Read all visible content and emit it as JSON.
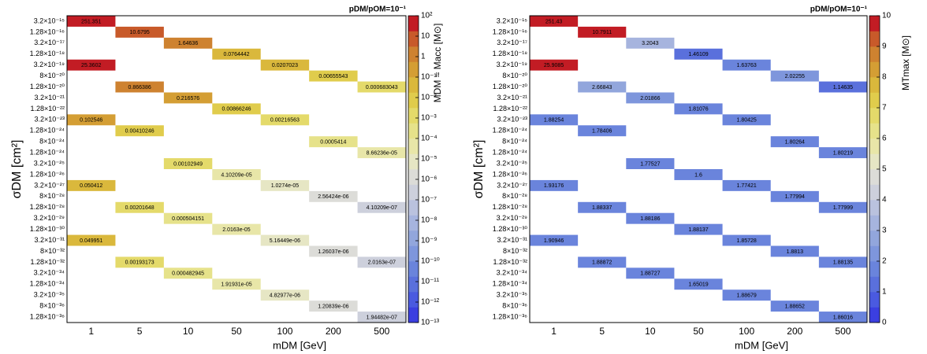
{
  "chart_data": [
    {
      "type": "heatmap",
      "title": "pDM/pOM=10⁻¹",
      "x_label": "mDM [GeV]",
      "y_label": "σDM [cm²]",
      "colorbar_label": "MDM ≈ Macc [M⊙]",
      "x_categories": [
        "1",
        "5",
        "10",
        "50",
        "100",
        "200",
        "500"
      ],
      "y_categories": [
        "3.2×10⁻¹⁵",
        "1.28×10⁻¹⁶",
        "3.2×10⁻¹⁷",
        "1.28×10⁻¹⁸",
        "3.2×10⁻¹⁹",
        "8×10⁻²⁰",
        "1.28×10⁻²⁰",
        "3.2×10⁻²¹",
        "1.28×10⁻²²",
        "3.2×10⁻²³",
        "1.28×10⁻²⁴",
        "8×10⁻²⁴",
        "1.28×10⁻²⁴",
        "3.2×10⁻²⁵",
        "1.28×10⁻²⁶",
        "3.2×10⁻²⁷",
        "8×10⁻²⁸",
        "1.28×10⁻²⁸",
        "3.2×10⁻²⁹",
        "1.28×10⁻³⁰",
        "3.2×10⁻³¹",
        "8×10⁻³²",
        "1.28×10⁻³²",
        "3.2×10⁻³⁴",
        "1.28×10⁻³⁴",
        "3.2×10⁻³⁵",
        "8×10⁻³⁶",
        "1.28×10⁻³⁶"
      ],
      "values": [
        [
          251.351,
          null,
          null,
          null,
          null,
          null,
          null
        ],
        [
          null,
          10.6795,
          null,
          null,
          null,
          null,
          null
        ],
        [
          null,
          null,
          1.64636,
          null,
          null,
          null,
          null
        ],
        [
          null,
          null,
          null,
          0.0764442,
          null,
          null,
          null
        ],
        [
          25.3602,
          null,
          null,
          null,
          0.0207023,
          null,
          null
        ],
        [
          null,
          null,
          null,
          null,
          null,
          0.00655543,
          null
        ],
        [
          null,
          0.866386,
          null,
          null,
          null,
          null,
          0.000683043
        ],
        [
          null,
          null,
          0.216576,
          null,
          null,
          null,
          null
        ],
        [
          null,
          null,
          null,
          0.00866246,
          null,
          null,
          null
        ],
        [
          0.102546,
          null,
          null,
          null,
          0.00216563,
          null,
          null
        ],
        [
          null,
          0.00410246,
          null,
          null,
          null,
          null,
          null
        ],
        [
          null,
          null,
          null,
          null,
          null,
          0.0005414,
          null
        ],
        [
          null,
          null,
          null,
          null,
          null,
          null,
          8.66236e-05
        ],
        [
          null,
          null,
          0.00102949,
          null,
          null,
          null,
          null
        ],
        [
          null,
          null,
          null,
          4.10209e-05,
          null,
          null,
          null
        ],
        [
          0.050412,
          null,
          null,
          null,
          1.0274e-05,
          null,
          null
        ],
        [
          null,
          null,
          null,
          null,
          null,
          2.56424e-06,
          null
        ],
        [
          null,
          0.00201648,
          null,
          null,
          null,
          null,
          4.10209e-07
        ],
        [
          null,
          null,
          0.000504151,
          null,
          null,
          null,
          null
        ],
        [
          null,
          null,
          null,
          2.0163e-05,
          null,
          null,
          null
        ],
        [
          0.049951,
          null,
          null,
          null,
          5.16449e-06,
          null,
          null
        ],
        [
          null,
          null,
          null,
          null,
          null,
          1.26037e-06,
          null
        ],
        [
          null,
          0.00193173,
          null,
          null,
          null,
          null,
          2.0163e-07
        ],
        [
          null,
          null,
          0.000482945,
          null,
          null,
          null,
          null
        ],
        [
          null,
          null,
          null,
          1.91931e-05,
          null,
          null,
          null
        ],
        [
          null,
          null,
          null,
          null,
          4.82977e-06,
          null,
          null
        ],
        [
          null,
          null,
          null,
          null,
          null,
          1.20839e-06,
          null
        ],
        [
          null,
          null,
          null,
          null,
          null,
          null,
          1.94482e-07
        ]
      ],
      "value_labels": [
        [
          "251.351",
          null,
          null,
          null,
          null,
          null,
          null
        ],
        [
          null,
          "10.6795",
          null,
          null,
          null,
          null,
          null
        ],
        [
          null,
          null,
          "1.64636",
          null,
          null,
          null,
          null
        ],
        [
          null,
          null,
          null,
          "0.0764442",
          null,
          null,
          null
        ],
        [
          "25.3602",
          null,
          null,
          null,
          "0.0207023",
          null,
          null
        ],
        [
          null,
          null,
          null,
          null,
          null,
          "0.00655543",
          null
        ],
        [
          null,
          "0.866386",
          null,
          null,
          null,
          null,
          "0.000683043"
        ],
        [
          null,
          null,
          "0.216576",
          null,
          null,
          null,
          null
        ],
        [
          null,
          null,
          null,
          "0.00866246",
          null,
          null,
          null
        ],
        [
          "0.102546",
          null,
          null,
          null,
          "0.00216563",
          null,
          null
        ],
        [
          null,
          "0.00410246",
          null,
          null,
          null,
          null,
          null
        ],
        [
          null,
          null,
          null,
          null,
          null,
          "0.0005414",
          null
        ],
        [
          null,
          null,
          null,
          null,
          null,
          null,
          "8.66236e-05"
        ],
        [
          null,
          null,
          "0.00102949",
          null,
          null,
          null,
          null
        ],
        [
          null,
          null,
          null,
          "4.10209e-05",
          null,
          null,
          null
        ],
        [
          "0.050412",
          null,
          null,
          null,
          "1.0274e-05",
          null,
          null
        ],
        [
          null,
          null,
          null,
          null,
          null,
          "2.56424e-06",
          null
        ],
        [
          null,
          "0.00201648",
          null,
          null,
          null,
          null,
          "4.10209e-07"
        ],
        [
          null,
          null,
          "0.000504151",
          null,
          null,
          null,
          null
        ],
        [
          null,
          null,
          null,
          "2.0163e-05",
          null,
          null,
          null
        ],
        [
          "0.049951",
          null,
          null,
          null,
          "5.16449e-06",
          null,
          null
        ],
        [
          null,
          null,
          null,
          null,
          null,
          "1.26037e-06",
          null
        ],
        [
          null,
          "0.00193173",
          null,
          null,
          null,
          null,
          "2.0163e-07"
        ],
        [
          null,
          null,
          "0.000482945",
          null,
          null,
          null,
          null
        ],
        [
          null,
          null,
          null,
          "1.91931e-05",
          null,
          null,
          null
        ],
        [
          null,
          null,
          null,
          null,
          "4.82977e-06",
          null,
          null
        ],
        [
          null,
          null,
          null,
          null,
          null,
          "1.20839e-06",
          null
        ],
        [
          null,
          null,
          null,
          null,
          null,
          null,
          "1.94482e-07"
        ]
      ],
      "zscale": "log",
      "zlim": [
        1e-13,
        100
      ],
      "zticks": [
        {
          "value": 100,
          "label": "10²"
        },
        10,
        1,
        {
          "value": 0.1,
          "label": "10⁻¹"
        },
        {
          "value": 0.01,
          "label": "10⁻²"
        },
        {
          "value": 0.001,
          "label": "10⁻³"
        },
        {
          "value": 0.0001,
          "label": "10⁻⁴"
        },
        {
          "value": 1e-05,
          "label": "10⁻⁵"
        },
        {
          "value": 1e-06,
          "label": "10⁻⁶"
        },
        {
          "value": 1e-07,
          "label": "10⁻⁷"
        },
        {
          "value": 1e-08,
          "label": "10⁻⁸"
        },
        {
          "value": 1e-09,
          "label": "10⁻⁹"
        },
        {
          "value": 1e-10,
          "label": "10⁻¹⁰"
        },
        {
          "value": 1e-11,
          "label": "10⁻¹¹"
        },
        {
          "value": 1e-12,
          "label": "10⁻¹²"
        },
        {
          "value": 1e-13,
          "label": "10⁻¹³"
        }
      ],
      "colormap": [
        "#3b3fe0",
        "#4a5ae0",
        "#5a70dc",
        "#6a84dc",
        "#7e96dc",
        "#92a6dc",
        "#a6b4de",
        "#bac2de",
        "#cdd0dc",
        "#dcdcd8",
        "#e6e6c4",
        "#e8e6a8",
        "#e6e28a",
        "#e4da6a",
        "#e0cc4c",
        "#dab83c",
        "#d49e34",
        "#ce8230",
        "#c85a2a",
        "#c21c24"
      ]
    },
    {
      "type": "heatmap",
      "title": "pDM/pOM=10⁻¹",
      "x_label": "mDM [GeV]",
      "y_label": "σDM [cm²]",
      "colorbar_label": "MTmax [M⊙]",
      "x_categories": [
        "1",
        "5",
        "10",
        "50",
        "100",
        "200",
        "500"
      ],
      "y_categories": [
        "3.2×10⁻¹⁵",
        "1.28×10⁻¹⁶",
        "3.2×10⁻¹⁷",
        "1.28×10⁻¹⁸",
        "3.2×10⁻¹⁹",
        "8×10⁻²⁰",
        "1.28×10⁻²⁰",
        "3.2×10⁻²¹",
        "1.28×10⁻²²",
        "3.2×10⁻²³",
        "1.28×10⁻²⁴",
        "8×10⁻²⁴",
        "1.28×10⁻²⁴",
        "3.2×10⁻²⁵",
        "1.28×10⁻²⁶",
        "3.2×10⁻²⁷",
        "8×10⁻²⁸",
        "1.28×10⁻²⁸",
        "3.2×10⁻²⁹",
        "1.28×10⁻³⁰",
        "3.2×10⁻³¹",
        "8×10⁻³²",
        "1.28×10⁻³²",
        "3.2×10⁻³⁴",
        "1.28×10⁻³⁴",
        "3.2×10⁻³⁵",
        "8×10⁻³⁶",
        "1.28×10⁻³⁶"
      ],
      "values": [
        [
          251.43,
          null,
          null,
          null,
          null,
          null,
          null
        ],
        [
          null,
          10.7911,
          null,
          null,
          null,
          null,
          null
        ],
        [
          null,
          null,
          3.2043,
          null,
          null,
          null,
          null
        ],
        [
          null,
          null,
          null,
          1.46109,
          null,
          null,
          null
        ],
        [
          25.9085,
          null,
          null,
          null,
          1.63763,
          null,
          null
        ],
        [
          null,
          null,
          null,
          null,
          null,
          2.02255,
          null
        ],
        [
          null,
          2.66843,
          null,
          null,
          null,
          null,
          1.14635
        ],
        [
          null,
          null,
          2.01866,
          null,
          null,
          null,
          null
        ],
        [
          null,
          null,
          null,
          1.81076,
          null,
          null,
          null
        ],
        [
          1.88254,
          null,
          null,
          null,
          1.80425,
          null,
          null
        ],
        [
          null,
          1.78406,
          null,
          null,
          null,
          null,
          null
        ],
        [
          null,
          null,
          null,
          null,
          null,
          1.80264,
          null
        ],
        [
          null,
          null,
          null,
          null,
          null,
          null,
          1.80219
        ],
        [
          null,
          null,
          1.77527,
          null,
          null,
          null,
          null
        ],
        [
          null,
          null,
          null,
          1.6,
          null,
          null,
          null
        ],
        [
          1.93176,
          null,
          null,
          null,
          1.77421,
          null,
          null
        ],
        [
          null,
          null,
          null,
          null,
          null,
          1.77994,
          null
        ],
        [
          null,
          1.88337,
          null,
          null,
          null,
          null,
          1.77999
        ],
        [
          null,
          null,
          1.88186,
          null,
          null,
          null,
          null
        ],
        [
          null,
          null,
          null,
          1.88137,
          null,
          null,
          null
        ],
        [
          1.90946,
          null,
          null,
          null,
          1.85728,
          null,
          null
        ],
        [
          null,
          null,
          null,
          null,
          null,
          1.8813,
          null
        ],
        [
          null,
          1.88872,
          null,
          null,
          null,
          null,
          1.88135
        ],
        [
          null,
          null,
          1.88727,
          null,
          null,
          null,
          null
        ],
        [
          null,
          null,
          null,
          1.65019,
          null,
          null,
          null
        ],
        [
          null,
          null,
          null,
          null,
          1.88679,
          null,
          null
        ],
        [
          null,
          null,
          null,
          null,
          null,
          1.88652,
          null
        ],
        [
          null,
          null,
          null,
          null,
          null,
          null,
          1.86016
        ]
      ],
      "zscale": "linear",
      "zlim": [
        0,
        10
      ],
      "zticks": [
        0,
        1,
        2,
        3,
        4,
        5,
        6,
        7,
        8,
        9,
        10
      ],
      "colormap": [
        "#3b3fe0",
        "#4a5ae0",
        "#5a70dc",
        "#6a84dc",
        "#7e96dc",
        "#92a6dc",
        "#a6b4de",
        "#bac2de",
        "#cdd0dc",
        "#dcdcd8",
        "#e6e6c4",
        "#e8e6a8",
        "#e6e28a",
        "#e4da6a",
        "#e0cc4c",
        "#dab83c",
        "#d49e34",
        "#ce8230",
        "#c85a2a",
        "#c21c24"
      ]
    }
  ]
}
